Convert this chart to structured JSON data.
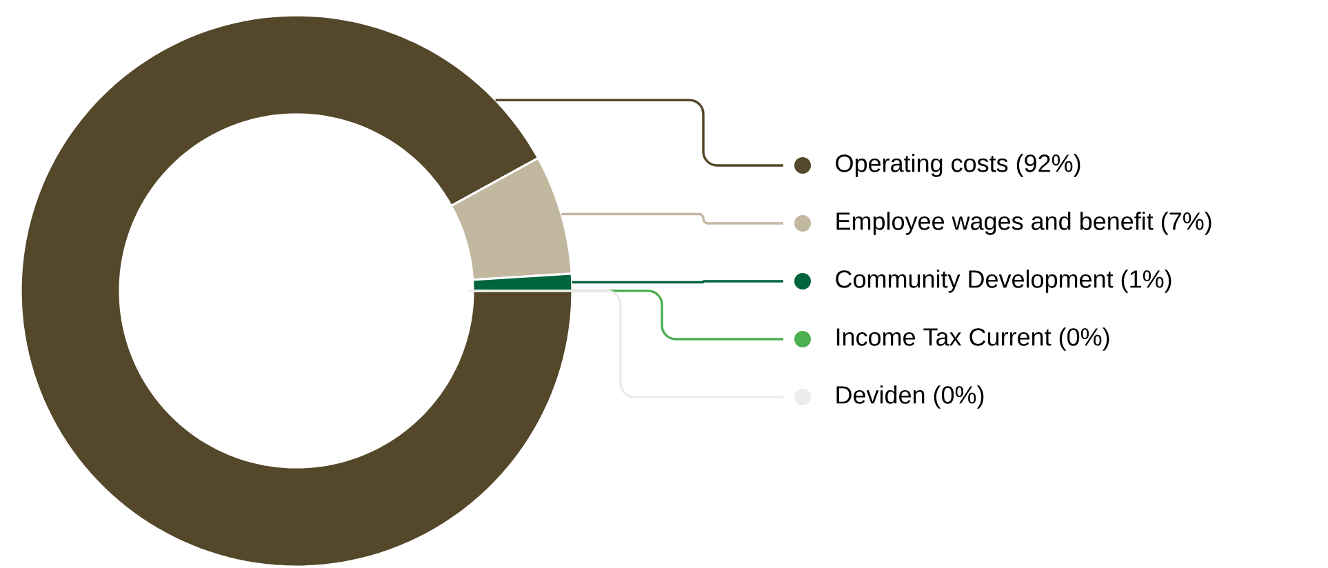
{
  "chart_data": {
    "type": "donut",
    "categories": [
      "Operating costs (92%)",
      "Employee wages and benefit (7%)",
      "Community Development (1%)",
      "Income Tax Current (0%)",
      "Deviden (0%)"
    ],
    "values": [
      92,
      7,
      1,
      0,
      0
    ],
    "colors": [
      "#54472a",
      "#c2b8a0",
      "#00643c",
      "#4caf50",
      "#ececec"
    ],
    "legend": "right"
  }
}
